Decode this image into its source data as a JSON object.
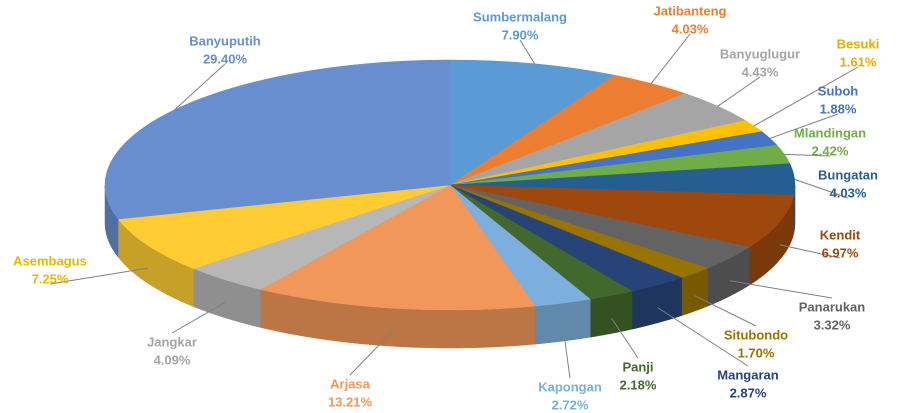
{
  "chart_data": {
    "type": "pie3d",
    "categories": [
      "Sumbermalang",
      "Jatibanteng",
      "Banyuglugur",
      "Besuki",
      "Suboh",
      "Mlandingan",
      "Bungatan",
      "Kendit",
      "Panarukan",
      "Situbondo",
      "Mangaran",
      "Panji",
      "Kapongan",
      "Arjasa",
      "Jangkar",
      "Asembagus",
      "Banyuputih"
    ],
    "values": [
      7.9,
      4.03,
      4.43,
      1.61,
      1.88,
      2.42,
      4.03,
      6.97,
      3.32,
      1.7,
      2.87,
      2.18,
      2.72,
      13.21,
      4.09,
      7.25,
      29.4
    ],
    "value_labels": [
      "7.90%",
      "4.03%",
      "4.43%",
      "1.61%",
      "1.88%",
      "2.42%",
      "4.03%",
      "6.97%",
      "3.32%",
      "1.70%",
      "2.87%",
      "2.18%",
      "2.72%",
      "13.21%",
      "4.09%",
      "7.25%",
      "29.40%"
    ],
    "colors": [
      "#5b9bd5",
      "#ed7d31",
      "#a5a5a5",
      "#ffc000",
      "#4472c4",
      "#70ad47",
      "#255e91",
      "#9e480e",
      "#636363",
      "#997300",
      "#264478",
      "#43682b",
      "#7cafdd",
      "#f1975a",
      "#b7b7b7",
      "#ffcd33",
      "#698ed0"
    ]
  }
}
